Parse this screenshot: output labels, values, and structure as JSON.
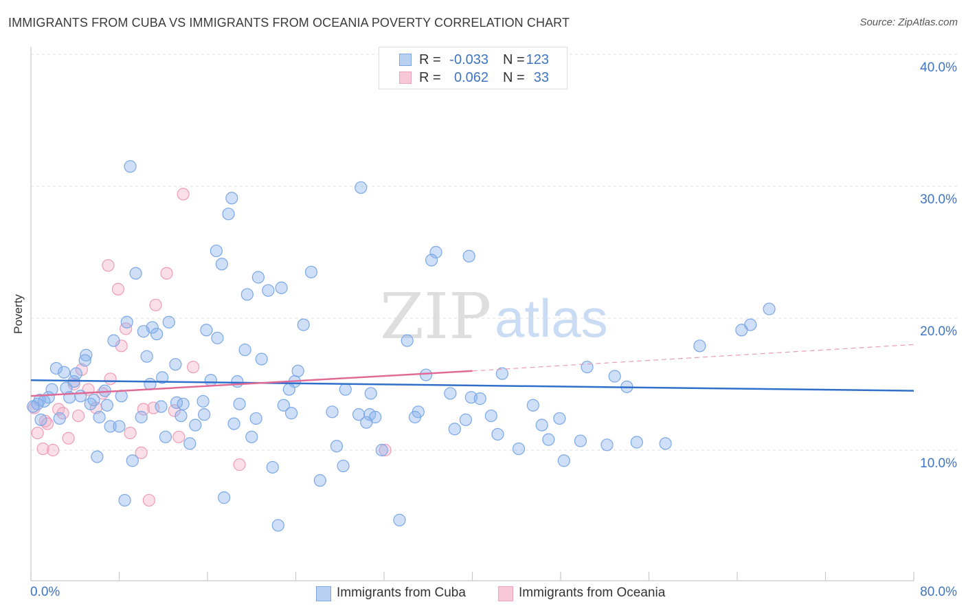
{
  "source": "Source: ZipAtlas.com",
  "watermark": {
    "zip": "ZIP",
    "atlas": "atlas"
  },
  "legend": {
    "r_label": "R =",
    "n_label": "N ="
  },
  "colors": {
    "cuba_stroke": "#7aa7e6",
    "cuba_fill": "#8ab2eb",
    "cuba_trend": "#2f6fcb",
    "oceania_stroke": "#ee9bb7",
    "oceania_fill": "#f3aac3",
    "oceania_trend": "#e06a96",
    "tick_label": "#3d74c4"
  },
  "chart_data": {
    "type": "scatter",
    "title": "IMMIGRANTS FROM CUBA VS IMMIGRANTS FROM OCEANIA POVERTY CORRELATION CHART",
    "xlabel": "",
    "ylabel": "Poverty",
    "xlim": [
      0,
      80
    ],
    "ylim": [
      0,
      40
    ],
    "x_ticks": [
      0,
      8,
      16,
      24,
      32,
      40,
      48,
      56,
      64,
      72,
      80
    ],
    "x_tick_labels": [
      "0.0%",
      "80.0%"
    ],
    "y_ticks": [
      10,
      20,
      30,
      40
    ],
    "y_tick_labels": [
      "10.0%",
      "20.0%",
      "30.0%",
      "40.0%"
    ],
    "grid": true,
    "legend_position": "top-center",
    "series": [
      {
        "name": "Immigrants from Cuba",
        "R": "-0.033",
        "N": "123",
        "trend": {
          "x": [
            0,
            80
          ],
          "y": [
            15.3,
            14.5
          ]
        },
        "points": [
          [
            9.0,
            31.5
          ],
          [
            29.9,
            29.9
          ],
          [
            18.2,
            29.1
          ],
          [
            17.9,
            27.9
          ],
          [
            16.8,
            25.1
          ],
          [
            36.7,
            25.0
          ],
          [
            39.7,
            24.7
          ],
          [
            36.3,
            24.4
          ],
          [
            17.3,
            24.1
          ],
          [
            9.5,
            23.4
          ],
          [
            25.4,
            23.5
          ],
          [
            20.6,
            23.1
          ],
          [
            22.7,
            22.3
          ],
          [
            21.5,
            22.1
          ],
          [
            19.6,
            21.8
          ],
          [
            66.9,
            20.7
          ],
          [
            8.7,
            19.7
          ],
          [
            12.5,
            19.7
          ],
          [
            24.7,
            19.5
          ],
          [
            65.2,
            19.5
          ],
          [
            11.0,
            19.3
          ],
          [
            64.4,
            19.1
          ],
          [
            10.2,
            19.0
          ],
          [
            15.9,
            19.1
          ],
          [
            11.4,
            18.8
          ],
          [
            16.9,
            18.5
          ],
          [
            7.5,
            18.3
          ],
          [
            34.1,
            18.3
          ],
          [
            60.6,
            17.9
          ],
          [
            19.4,
            17.6
          ],
          [
            5.0,
            17.2
          ],
          [
            10.5,
            17.1
          ],
          [
            4.9,
            16.8
          ],
          [
            20.9,
            16.9
          ],
          [
            13.1,
            16.5
          ],
          [
            50.4,
            16.3
          ],
          [
            2.3,
            16.2
          ],
          [
            3.0,
            15.9
          ],
          [
            4.1,
            15.8
          ],
          [
            24.2,
            16.0
          ],
          [
            42.7,
            15.8
          ],
          [
            35.8,
            15.7
          ],
          [
            52.9,
            15.6
          ],
          [
            11.9,
            15.5
          ],
          [
            3.9,
            15.2
          ],
          [
            16.3,
            15.3
          ],
          [
            18.7,
            15.2
          ],
          [
            23.9,
            15.2
          ],
          [
            10.8,
            15.0
          ],
          [
            1.9,
            14.6
          ],
          [
            23.4,
            14.6
          ],
          [
            3.2,
            14.7
          ],
          [
            28.5,
            14.6
          ],
          [
            54.0,
            14.8
          ],
          [
            6.7,
            14.5
          ],
          [
            30.8,
            14.3
          ],
          [
            38.0,
            14.3
          ],
          [
            4.5,
            14.1
          ],
          [
            3.5,
            14.0
          ],
          [
            8.2,
            14.1
          ],
          [
            1.6,
            14.0
          ],
          [
            39.9,
            14.0
          ],
          [
            40.7,
            13.9
          ],
          [
            0.8,
            13.8
          ],
          [
            1.2,
            13.7
          ],
          [
            5.7,
            13.8
          ],
          [
            15.6,
            13.7
          ],
          [
            13.2,
            13.6
          ],
          [
            13.8,
            13.5
          ],
          [
            18.9,
            13.5
          ],
          [
            5.4,
            13.5
          ],
          [
            0.6,
            13.5
          ],
          [
            45.5,
            13.4
          ],
          [
            6.9,
            13.4
          ],
          [
            11.8,
            13.3
          ],
          [
            0.2,
            13.3
          ],
          [
            22.9,
            13.4
          ],
          [
            35.1,
            12.9
          ],
          [
            23.6,
            12.8
          ],
          [
            27.3,
            12.9
          ],
          [
            6.2,
            12.5
          ],
          [
            10.0,
            12.5
          ],
          [
            15.7,
            12.7
          ],
          [
            13.6,
            12.6
          ],
          [
            29.7,
            12.7
          ],
          [
            30.7,
            12.7
          ],
          [
            31.2,
            12.5
          ],
          [
            34.8,
            12.5
          ],
          [
            41.7,
            12.6
          ],
          [
            2.6,
            12.4
          ],
          [
            0.9,
            12.3
          ],
          [
            20.4,
            12.4
          ],
          [
            47.9,
            12.4
          ],
          [
            39.4,
            12.3
          ],
          [
            30.4,
            12.1
          ],
          [
            18.4,
            12.0
          ],
          [
            14.9,
            11.9
          ],
          [
            7.2,
            11.8
          ],
          [
            8.0,
            11.8
          ],
          [
            46.3,
            11.9
          ],
          [
            38.4,
            11.6
          ],
          [
            42.3,
            11.2
          ],
          [
            12.2,
            11.0
          ],
          [
            20.0,
            11.0
          ],
          [
            46.9,
            10.8
          ],
          [
            49.8,
            10.7
          ],
          [
            14.4,
            10.5
          ],
          [
            54.9,
            10.6
          ],
          [
            57.5,
            10.5
          ],
          [
            52.2,
            10.4
          ],
          [
            27.7,
            10.3
          ],
          [
            44.2,
            10.1
          ],
          [
            31.8,
            10.0
          ],
          [
            6.0,
            9.5
          ],
          [
            9.2,
            9.2
          ],
          [
            48.3,
            9.2
          ],
          [
            28.3,
            8.8
          ],
          [
            21.9,
            8.7
          ],
          [
            26.2,
            7.7
          ],
          [
            17.5,
            6.4
          ],
          [
            8.5,
            6.2
          ],
          [
            33.4,
            4.7
          ],
          [
            22.4,
            4.3
          ]
        ]
      },
      {
        "name": "Immigrants from Oceania",
        "R": "0.062",
        "N": "33",
        "trend": {
          "x": [
            0,
            40
          ],
          "y": [
            14.1,
            16.0
          ],
          "extension_x": [
            40,
            80
          ],
          "extension_y": [
            16.0,
            18.0
          ]
        },
        "points": [
          [
            13.8,
            29.4
          ],
          [
            7.0,
            24.0
          ],
          [
            12.3,
            23.4
          ],
          [
            7.9,
            22.2
          ],
          [
            11.3,
            21.0
          ],
          [
            8.6,
            19.2
          ],
          [
            8.2,
            17.9
          ],
          [
            14.7,
            16.3
          ],
          [
            4.6,
            16.1
          ],
          [
            7.2,
            15.4
          ],
          [
            3.9,
            15.0
          ],
          [
            5.2,
            14.6
          ],
          [
            6.5,
            14.3
          ],
          [
            0.3,
            13.2
          ],
          [
            5.9,
            13.2
          ],
          [
            2.5,
            13.1
          ],
          [
            11.1,
            13.2
          ],
          [
            10.2,
            13.1
          ],
          [
            13.0,
            13.0
          ],
          [
            2.9,
            12.8
          ],
          [
            4.3,
            12.6
          ],
          [
            1.3,
            12.2
          ],
          [
            1.5,
            12.0
          ],
          [
            0.6,
            11.3
          ],
          [
            9.0,
            11.3
          ],
          [
            13.4,
            11.0
          ],
          [
            3.4,
            10.9
          ],
          [
            1.1,
            10.1
          ],
          [
            2.0,
            10.0
          ],
          [
            10.0,
            9.8
          ],
          [
            32.1,
            10.0
          ],
          [
            18.9,
            8.9
          ],
          [
            10.7,
            6.2
          ]
        ]
      }
    ]
  }
}
